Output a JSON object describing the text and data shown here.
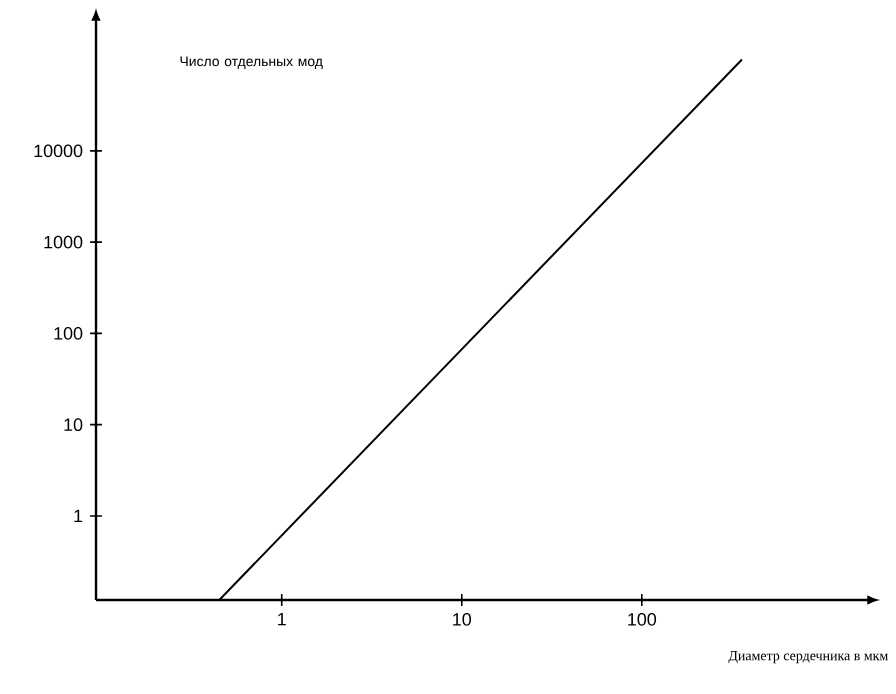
{
  "chart_data": {
    "type": "line",
    "xlabel": "Диаметр сердечника в мкм",
    "ylabel": "Число отдельных мод",
    "x": [
      0.45,
      360
    ],
    "series": [
      {
        "color": "#000000",
        "values": [
          0.12,
          100000
        ]
      }
    ],
    "log": "xy",
    "xlim": [
      0.093,
      1900
    ],
    "ylim": [
      0.12,
      300000
    ],
    "xticks": [
      1,
      10,
      100
    ],
    "yticks": [
      1,
      10,
      100,
      1000,
      10000
    ],
    "grid": false
  }
}
